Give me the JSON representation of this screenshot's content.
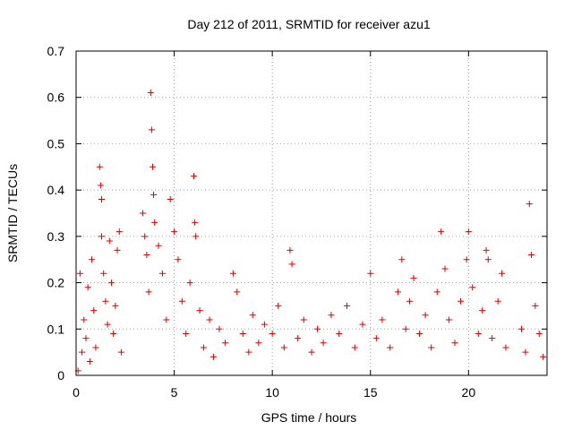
{
  "chart_data": {
    "type": "scatter",
    "title": "Day 212 of 2011, SRMTID for receiver azu1",
    "xlabel": "GPS time / hours",
    "ylabel": "SRMTID / TECUs",
    "xlim": [
      0,
      24
    ],
    "ylim": [
      0,
      0.7
    ],
    "xticks": [
      "0",
      "5",
      "10",
      "15",
      "20"
    ],
    "xtick_values": [
      0,
      5,
      10,
      15,
      20
    ],
    "yticks": [
      "0",
      "0.1",
      "0.2",
      "0.3",
      "0.4",
      "0.5",
      "0.6",
      "0.7"
    ],
    "ytick_values": [
      0,
      0.1,
      0.2,
      0.3,
      0.4,
      0.5,
      0.6,
      0.7
    ],
    "grid": true,
    "marker": "+",
    "color": "#e00000",
    "series": [
      {
        "points": [
          [
            0.1,
            0.01
          ],
          [
            0.2,
            0.22
          ],
          [
            0.3,
            0.05
          ],
          [
            0.4,
            0.12
          ],
          [
            0.5,
            0.08
          ],
          [
            0.6,
            0.19
          ],
          [
            0.7,
            0.03
          ],
          [
            0.8,
            0.25
          ],
          [
            0.9,
            0.14
          ],
          [
            1.0,
            0.06
          ],
          [
            1.2,
            0.45
          ],
          [
            1.25,
            0.41
          ],
          [
            1.3,
            0.38
          ],
          [
            1.3,
            0.3
          ],
          [
            1.4,
            0.22
          ],
          [
            1.5,
            0.16
          ],
          [
            1.6,
            0.11
          ],
          [
            1.7,
            0.29
          ],
          [
            1.8,
            0.2
          ],
          [
            1.9,
            0.09
          ],
          [
            2.0,
            0.15
          ],
          [
            2.1,
            0.27
          ],
          [
            2.2,
            0.31
          ],
          [
            2.3,
            0.05
          ],
          [
            3.4,
            0.35
          ],
          [
            3.5,
            0.3
          ],
          [
            3.6,
            0.26
          ],
          [
            3.7,
            0.18
          ],
          [
            3.8,
            0.61
          ],
          [
            3.85,
            0.53
          ],
          [
            3.9,
            0.45
          ],
          [
            3.95,
            0.39
          ],
          [
            4.0,
            0.33
          ],
          [
            4.2,
            0.28
          ],
          [
            4.4,
            0.22
          ],
          [
            4.6,
            0.12
          ],
          [
            4.8,
            0.38
          ],
          [
            5.0,
            0.31
          ],
          [
            5.2,
            0.25
          ],
          [
            5.4,
            0.16
          ],
          [
            5.6,
            0.09
          ],
          [
            5.8,
            0.2
          ],
          [
            6.0,
            0.43
          ],
          [
            6.05,
            0.33
          ],
          [
            6.1,
            0.3
          ],
          [
            6.3,
            0.14
          ],
          [
            6.5,
            0.06
          ],
          [
            6.8,
            0.12
          ],
          [
            7.0,
            0.04
          ],
          [
            7.3,
            0.1
          ],
          [
            7.6,
            0.07
          ],
          [
            8.0,
            0.22
          ],
          [
            8.2,
            0.18
          ],
          [
            8.5,
            0.09
          ],
          [
            8.8,
            0.05
          ],
          [
            9.0,
            0.13
          ],
          [
            9.3,
            0.07
          ],
          [
            9.6,
            0.11
          ],
          [
            10.0,
            0.09
          ],
          [
            10.3,
            0.15
          ],
          [
            10.6,
            0.06
          ],
          [
            10.9,
            0.27
          ],
          [
            11.0,
            0.24
          ],
          [
            11.3,
            0.08
          ],
          [
            11.6,
            0.12
          ],
          [
            12.0,
            0.05
          ],
          [
            12.3,
            0.1
          ],
          [
            12.6,
            0.07
          ],
          [
            13.0,
            0.13
          ],
          [
            13.4,
            0.09
          ],
          [
            13.8,
            0.15
          ],
          [
            14.2,
            0.06
          ],
          [
            14.6,
            0.11
          ],
          [
            15.0,
            0.22
          ],
          [
            15.3,
            0.08
          ],
          [
            15.6,
            0.12
          ],
          [
            16.0,
            0.06
          ],
          [
            16.4,
            0.18
          ],
          [
            16.6,
            0.25
          ],
          [
            16.8,
            0.1
          ],
          [
            17.0,
            0.16
          ],
          [
            17.2,
            0.21
          ],
          [
            17.5,
            0.09
          ],
          [
            17.8,
            0.13
          ],
          [
            18.1,
            0.06
          ],
          [
            18.4,
            0.18
          ],
          [
            18.6,
            0.31
          ],
          [
            18.8,
            0.23
          ],
          [
            19.0,
            0.12
          ],
          [
            19.3,
            0.07
          ],
          [
            19.6,
            0.16
          ],
          [
            19.9,
            0.25
          ],
          [
            20.0,
            0.31
          ],
          [
            20.2,
            0.19
          ],
          [
            20.5,
            0.09
          ],
          [
            20.7,
            0.14
          ],
          [
            20.9,
            0.27
          ],
          [
            21.0,
            0.25
          ],
          [
            21.2,
            0.08
          ],
          [
            21.5,
            0.16
          ],
          [
            21.7,
            0.22
          ],
          [
            21.9,
            0.06
          ],
          [
            22.7,
            0.1
          ],
          [
            22.9,
            0.05
          ],
          [
            23.1,
            0.37
          ],
          [
            23.2,
            0.26
          ],
          [
            23.4,
            0.15
          ],
          [
            23.6,
            0.09
          ],
          [
            23.8,
            0.04
          ]
        ]
      }
    ]
  }
}
